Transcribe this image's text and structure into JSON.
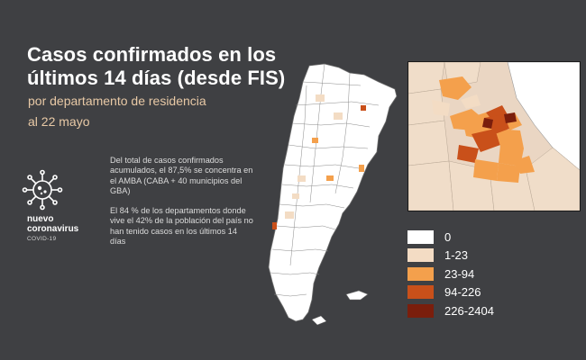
{
  "title": {
    "line1": "Casos confirmados en los",
    "line2": "últimos 14 días (desde FIS)",
    "subtitle": "por departamento de residencia",
    "date": "al 22 mayo"
  },
  "note": {
    "p1": "Del total de casos confirmados acumulados, el 87,5% se concentra en el AMBA (CABA + 40 municipios del GBA)",
    "p2": "El 84 % de los departamentos donde vive el 42% de la población del país no han tenido casos en los últimos 14 días"
  },
  "brand": {
    "line1": "nuevo",
    "line2": "coronavirus",
    "line3": "COVID-19",
    "icon": "virus-icon"
  },
  "legend": [
    {
      "label": "0",
      "color": "#ffffff"
    },
    {
      "label": "1-23",
      "color": "#f3dcc4"
    },
    {
      "label": "23-94",
      "color": "#f4a04c"
    },
    {
      "label": "94-226",
      "color": "#c9501a"
    },
    {
      "label": "226-2404",
      "color": "#7a1e0c"
    }
  ],
  "colors": {
    "background": "#3f4043",
    "accent_text": "#e8c9a6"
  }
}
